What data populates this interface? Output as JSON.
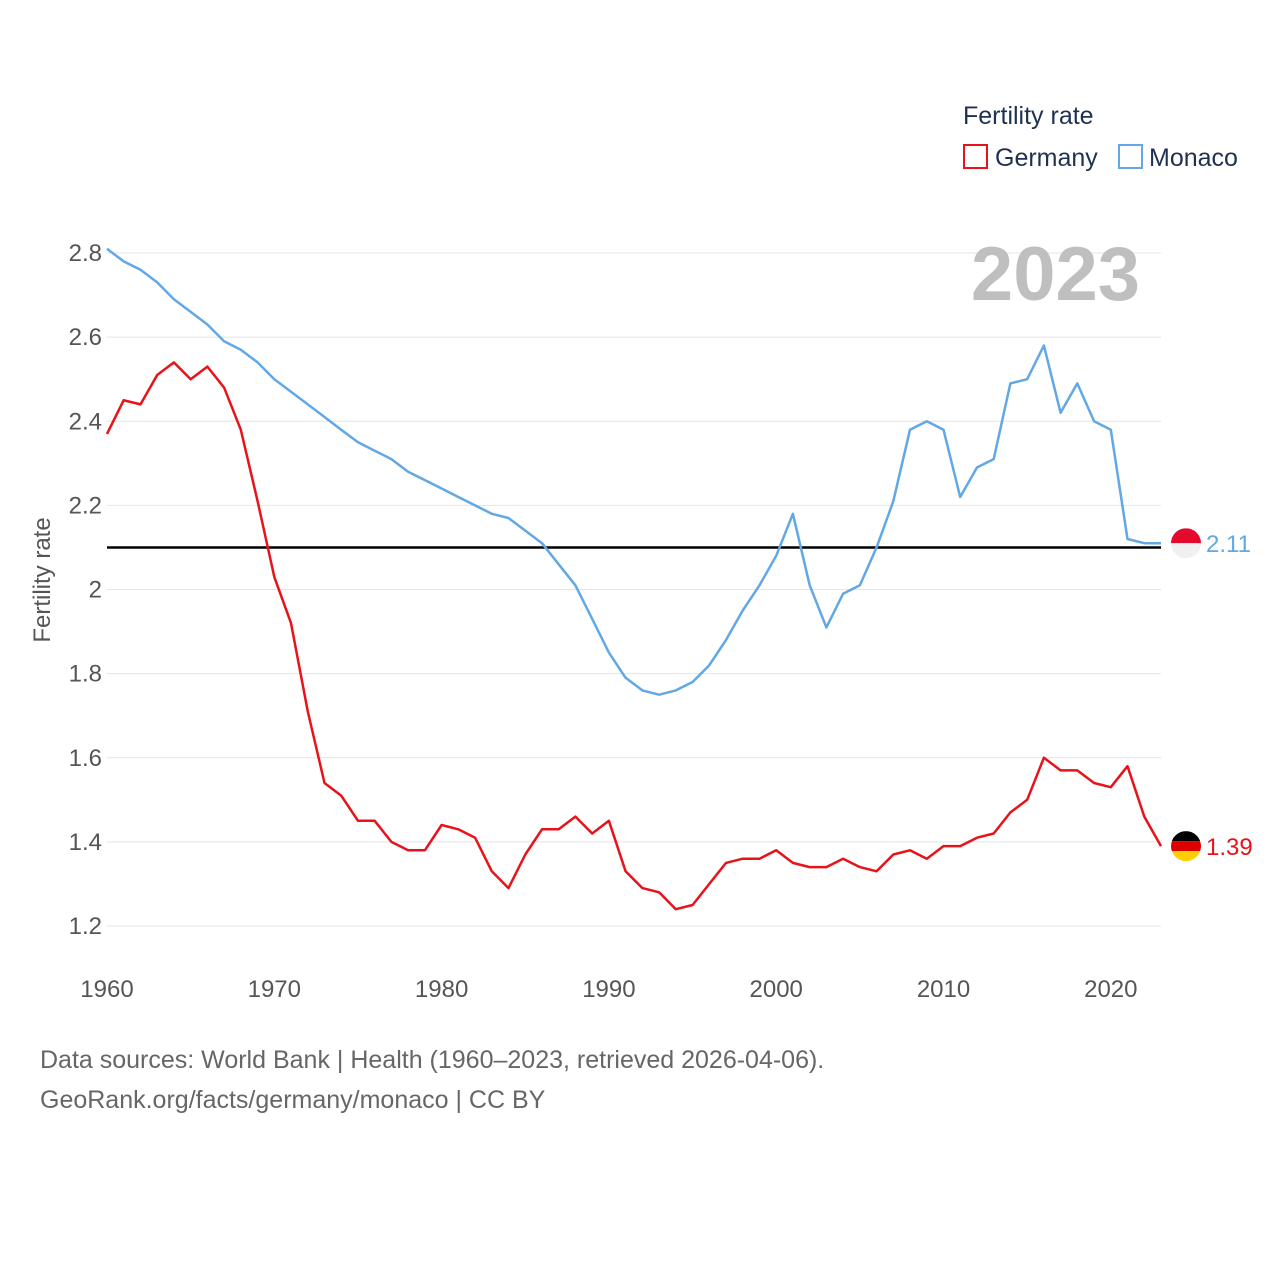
{
  "chart_data": {
    "type": "line",
    "title": "Fertility rate",
    "ylabel": "Fertility rate",
    "xlabel": "",
    "year_label": "2023",
    "xlim": [
      1960,
      2023
    ],
    "ylim": [
      1.1,
      2.82
    ],
    "x_ticks": [
      1960,
      1970,
      1980,
      1990,
      2000,
      2010,
      2020
    ],
    "y_ticks": [
      1.2,
      1.4,
      1.6,
      1.8,
      2,
      2.2,
      2.4,
      2.6,
      2.8
    ],
    "y_tick_labels": [
      "1.2",
      "1.4",
      "1.6",
      "1.8",
      "2",
      "2.2",
      "2.4",
      "2.6",
      "2.8"
    ],
    "x_tick_labels": [
      "1960",
      "1970",
      "1980",
      "1990",
      "2000",
      "2010",
      "2020"
    ],
    "reference_line": 2.1,
    "x": [
      1960,
      1961,
      1962,
      1963,
      1964,
      1965,
      1966,
      1967,
      1968,
      1969,
      1970,
      1971,
      1972,
      1973,
      1974,
      1975,
      1976,
      1977,
      1978,
      1979,
      1980,
      1981,
      1982,
      1983,
      1984,
      1985,
      1986,
      1987,
      1988,
      1989,
      1990,
      1991,
      1992,
      1993,
      1994,
      1995,
      1996,
      1997,
      1998,
      1999,
      2000,
      2001,
      2002,
      2003,
      2004,
      2005,
      2006,
      2007,
      2008,
      2009,
      2010,
      2011,
      2012,
      2013,
      2014,
      2015,
      2016,
      2017,
      2018,
      2019,
      2020,
      2021,
      2022,
      2023
    ],
    "series": [
      {
        "name": "Germany",
        "color": "#e8131a",
        "end_label": "1.39",
        "values": [
          2.37,
          2.45,
          2.44,
          2.51,
          2.54,
          2.5,
          2.53,
          2.48,
          2.38,
          2.21,
          2.03,
          1.92,
          1.71,
          1.54,
          1.51,
          1.45,
          1.45,
          1.4,
          1.38,
          1.38,
          1.44,
          1.43,
          1.41,
          1.33,
          1.29,
          1.37,
          1.43,
          1.43,
          1.46,
          1.42,
          1.45,
          1.33,
          1.29,
          1.28,
          1.24,
          1.25,
          1.3,
          1.35,
          1.36,
          1.36,
          1.38,
          1.35,
          1.34,
          1.34,
          1.36,
          1.34,
          1.33,
          1.37,
          1.38,
          1.36,
          1.39,
          1.39,
          1.41,
          1.42,
          1.47,
          1.5,
          1.6,
          1.57,
          1.57,
          1.54,
          1.53,
          1.58,
          1.46,
          1.39
        ]
      },
      {
        "name": "Monaco",
        "color": "#62a7e6",
        "end_label": "2.11",
        "values": [
          2.81,
          2.78,
          2.76,
          2.73,
          2.69,
          2.66,
          2.63,
          2.59,
          2.57,
          2.54,
          2.5,
          2.47,
          2.44,
          2.41,
          2.38,
          2.35,
          2.33,
          2.31,
          2.28,
          2.26,
          2.24,
          2.22,
          2.2,
          2.18,
          2.17,
          2.14,
          2.11,
          2.06,
          2.01,
          1.93,
          1.85,
          1.79,
          1.76,
          1.75,
          1.76,
          1.78,
          1.82,
          1.88,
          1.95,
          2.01,
          2.08,
          2.18,
          2.01,
          1.91,
          1.99,
          2.01,
          2.1,
          2.21,
          2.38,
          2.4,
          2.38,
          2.22,
          2.29,
          2.31,
          2.49,
          2.5,
          2.58,
          2.42,
          2.49,
          2.4,
          2.38,
          2.12,
          2.11,
          2.11
        ]
      }
    ],
    "legend_position": "top-right",
    "source_line1": "Data sources: World Bank | Health (1960–2023, retrieved 2026-04-06).",
    "source_line2": "GeoRank.org/facts/germany/monaco | CC BY"
  }
}
